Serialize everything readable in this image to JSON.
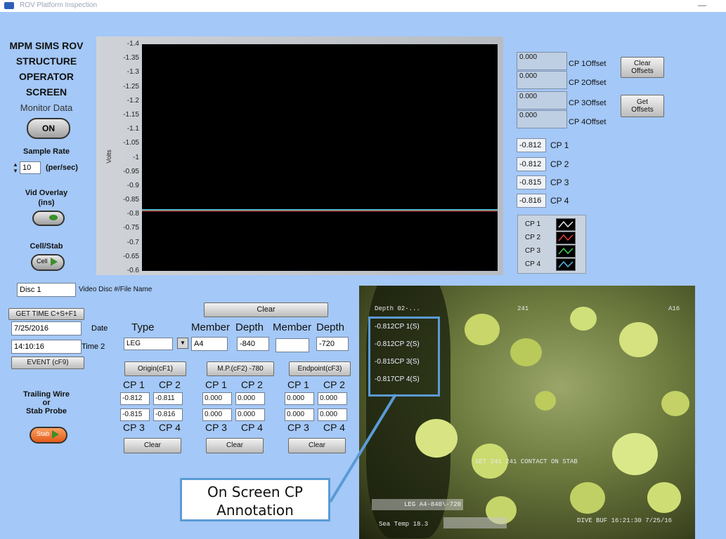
{
  "window": {
    "title": "ROV Platform Inspection"
  },
  "app": {
    "title_lines": [
      "MPM SIMS ROV",
      "STRUCTURE",
      "OPERATOR",
      "SCREEN"
    ]
  },
  "monitor": {
    "label": "Monitor Data",
    "button": "ON"
  },
  "sample_rate": {
    "label": "Sample Rate",
    "value": "10",
    "unit": "(per/sec)"
  },
  "vid_overlay": {
    "label_line1": "Vid Overlay",
    "label_line2": "(ins)"
  },
  "cell_stab": {
    "label": "Cell/Stab",
    "button": "Cell"
  },
  "disc": {
    "value": "Disc 1",
    "label": "Video Disc #/File Name"
  },
  "get_time": {
    "button": "GET TIME C+S+F1",
    "date_value": "7/25/2016",
    "date_label": "Date",
    "time_value": "14:10:16",
    "time_label": "Time 2"
  },
  "event": {
    "button": "EVENT (cF9)"
  },
  "trailing": {
    "line1": "Trailing Wire",
    "line2": "or",
    "line3": "Stab Probe",
    "button": "Stab"
  },
  "chart_data": {
    "type": "line",
    "ylabel": "Volts",
    "ylim": [
      -1.4,
      -0.6
    ],
    "yticks": [
      "-1.4",
      "-1.35",
      "-1.3",
      "-1.25",
      "-1.2",
      "-1.15",
      "-1.1",
      "-1.05",
      "-1",
      "-0.95",
      "-0.9",
      "-0.85",
      "-0.8",
      "-0.75",
      "-0.7",
      "-0.65",
      "-0.6"
    ],
    "series": [
      {
        "name": "CP 1",
        "color": "#e8e8e8",
        "values": [
          -0.812,
          -0.812,
          -0.812,
          -0.812,
          -0.812
        ]
      },
      {
        "name": "CP 2",
        "color": "#e04040",
        "values": [
          -0.812,
          -0.812,
          -0.812,
          -0.812,
          -0.812
        ]
      },
      {
        "name": "CP 3",
        "color": "#3fcf5a",
        "values": [
          -0.815,
          -0.815,
          -0.815,
          -0.815,
          -0.815
        ]
      },
      {
        "name": "CP 4",
        "color": "#5ab4e6",
        "values": [
          -0.816,
          -0.816,
          -0.816,
          -0.816,
          -0.816
        ]
      }
    ]
  },
  "offsets": {
    "items": [
      {
        "value": "0.000",
        "label": "CP 1Offset"
      },
      {
        "value": "0.000",
        "label": "CP 2Offset"
      },
      {
        "value": "0.000",
        "label": "CP 3Offset"
      },
      {
        "value": "0.000",
        "label": "CP 4Offset"
      }
    ],
    "clear_button": [
      "Clear",
      "Offsets"
    ],
    "get_button": [
      "Get",
      "Offsets"
    ]
  },
  "cp_readings": [
    {
      "value": "-0.812",
      "label": "CP 1"
    },
    {
      "value": "-0.812",
      "label": "CP 2"
    },
    {
      "value": "-0.815",
      "label": "CP 3"
    },
    {
      "value": "-0.816",
      "label": "CP 4"
    }
  ],
  "legend": [
    "CP 1",
    "CP 2",
    "CP 3",
    "CP 4"
  ],
  "type_section": {
    "label": "Type",
    "value": "LEG"
  },
  "member_depth": {
    "clear_button": "Clear",
    "member_label_1": "Member",
    "depth_label_1": "Depth",
    "member_label_2": "Member",
    "depth_label_2": "Depth",
    "member_1": "A4",
    "depth_1": "-840",
    "member_2": "",
    "depth_2": "-720"
  },
  "points": [
    {
      "button": "Origin(cF1)",
      "cp1": "-0.812",
      "cp2": "-0.811",
      "cp3": "-0.815",
      "cp4": "-0.816",
      "clear": "Clear"
    },
    {
      "button": "M.P.(cF2)  -780",
      "cp1": "0.000",
      "cp2": "0.000",
      "cp3": "0.000",
      "cp4": "0.000",
      "clear": "Clear"
    },
    {
      "button": "Endpoint(cF3)",
      "cp1": "0.000",
      "cp2": "0.000",
      "cp3": "0.000",
      "cp4": "0.000",
      "clear": "Clear"
    }
  ],
  "cp_headers": {
    "cp1": "CP 1",
    "cp2": "CP 2",
    "cp3": "CP 3",
    "cp4": "CP 4"
  },
  "video_overlay": {
    "cp_lines": [
      "-0.812CP 1(S)",
      "-0.812CP 2(S)",
      "-0.815CP 3(S)",
      "-0.817CP 4(S)"
    ],
    "top_left": "Depth 02-...",
    "top_mid": "241",
    "top_right": "A16",
    "mid_text": "SET 241 241 CONTACT ON STAB",
    "bottom_leg": "LEG A4-840\\-720",
    "bottom_left": "Sea Temp 18.3",
    "bottom_right": "DIVE BUF 16:21:30 7/25/16"
  },
  "callout": {
    "line1": "On Screen CP",
    "line2": "Annotation"
  }
}
